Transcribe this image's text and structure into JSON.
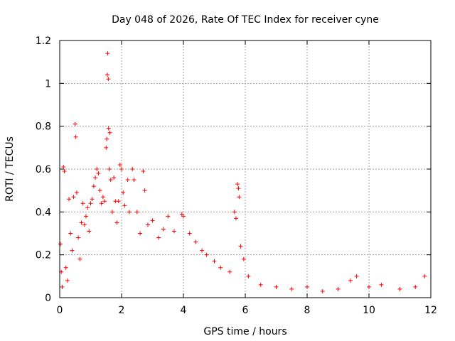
{
  "chart_data": {
    "type": "scatter",
    "title": "Day 048 of 2026, Rate Of TEC Index for receiver cyne",
    "xlabel": "GPS time / hours",
    "ylabel": "ROTI / TECUs",
    "xlim": [
      0,
      12
    ],
    "ylim": [
      0,
      1.2
    ],
    "x_ticks": [
      "0",
      "2",
      "4",
      "6",
      "8",
      "10",
      "12"
    ],
    "y_ticks": [
      "0",
      "0.2",
      "0.4",
      "0.6",
      "0.8",
      "1",
      "1.2"
    ],
    "grid": true,
    "marker": "+",
    "colors": {
      "points": "#ff0000",
      "grid": "#a0a0a0",
      "axes": "#000000"
    },
    "series": [
      {
        "points": [
          [
            0.02,
            0.25
          ],
          [
            0.05,
            0.12
          ],
          [
            0.08,
            0.05
          ],
          [
            0.12,
            0.61
          ],
          [
            0.15,
            0.59
          ],
          [
            0.2,
            0.14
          ],
          [
            0.25,
            0.08
          ],
          [
            0.3,
            0.46
          ],
          [
            0.35,
            0.3
          ],
          [
            0.4,
            0.22
          ],
          [
            0.45,
            0.47
          ],
          [
            0.5,
            0.81
          ],
          [
            0.52,
            0.75
          ],
          [
            0.55,
            0.49
          ],
          [
            0.6,
            0.28
          ],
          [
            0.65,
            0.18
          ],
          [
            0.7,
            0.35
          ],
          [
            0.75,
            0.44
          ],
          [
            0.8,
            0.34
          ],
          [
            0.85,
            0.38
          ],
          [
            0.9,
            0.42
          ],
          [
            0.95,
            0.31
          ],
          [
            1.0,
            0.44
          ],
          [
            1.05,
            0.46
          ],
          [
            1.1,
            0.52
          ],
          [
            1.15,
            0.56
          ],
          [
            1.2,
            0.6
          ],
          [
            1.25,
            0.58
          ],
          [
            1.3,
            0.5
          ],
          [
            1.35,
            0.44
          ],
          [
            1.4,
            0.47
          ],
          [
            1.45,
            0.45
          ],
          [
            1.5,
            0.7
          ],
          [
            1.52,
            0.74
          ],
          [
            1.54,
            1.04
          ],
          [
            1.55,
            1.14
          ],
          [
            1.57,
            1.02
          ],
          [
            1.58,
            0.79
          ],
          [
            1.6,
            0.6
          ],
          [
            1.62,
            0.77
          ],
          [
            1.65,
            0.55
          ],
          [
            1.7,
            0.4
          ],
          [
            1.75,
            0.56
          ],
          [
            1.8,
            0.45
          ],
          [
            1.85,
            0.35
          ],
          [
            1.9,
            0.45
          ],
          [
            1.95,
            0.62
          ],
          [
            2.0,
            0.6
          ],
          [
            2.05,
            0.49
          ],
          [
            2.1,
            0.43
          ],
          [
            2.2,
            0.55
          ],
          [
            2.25,
            0.4
          ],
          [
            2.35,
            0.6
          ],
          [
            2.4,
            0.55
          ],
          [
            2.5,
            0.4
          ],
          [
            2.6,
            0.3
          ],
          [
            2.7,
            0.59
          ],
          [
            2.75,
            0.5
          ],
          [
            2.85,
            0.34
          ],
          [
            3.0,
            0.36
          ],
          [
            3.2,
            0.28
          ],
          [
            3.35,
            0.32
          ],
          [
            3.5,
            0.38
          ],
          [
            3.7,
            0.31
          ],
          [
            3.95,
            0.39
          ],
          [
            4.0,
            0.38
          ],
          [
            4.2,
            0.3
          ],
          [
            4.4,
            0.26
          ],
          [
            4.6,
            0.22
          ],
          [
            4.75,
            0.2
          ],
          [
            5.0,
            0.17
          ],
          [
            5.2,
            0.14
          ],
          [
            5.5,
            0.12
          ],
          [
            5.65,
            0.4
          ],
          [
            5.7,
            0.37
          ],
          [
            5.75,
            0.53
          ],
          [
            5.78,
            0.51
          ],
          [
            5.8,
            0.47
          ],
          [
            5.85,
            0.24
          ],
          [
            5.95,
            0.18
          ],
          [
            6.1,
            0.1
          ],
          [
            6.5,
            0.06
          ],
          [
            7.0,
            0.05
          ],
          [
            7.5,
            0.04
          ],
          [
            8.0,
            0.05
          ],
          [
            8.5,
            0.03
          ],
          [
            9.0,
            0.04
          ],
          [
            9.4,
            0.08
          ],
          [
            9.6,
            0.1
          ],
          [
            10.0,
            0.05
          ],
          [
            10.4,
            0.06
          ],
          [
            11.0,
            0.04
          ],
          [
            11.5,
            0.05
          ],
          [
            11.8,
            0.1
          ]
        ]
      }
    ]
  }
}
